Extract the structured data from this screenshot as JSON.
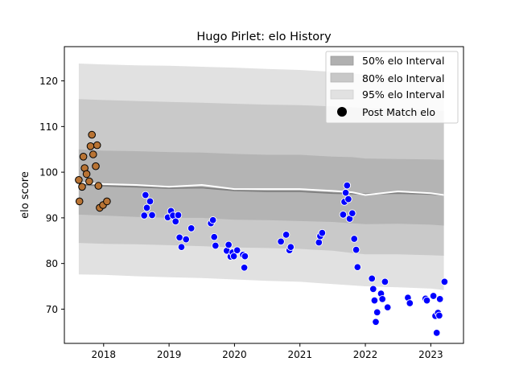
{
  "chart_data": {
    "type": "scatter",
    "title": "Hugo Pirlet: elo History",
    "xlabel": "",
    "ylabel": "elo score",
    "xlim": [
      2017.4,
      2023.5
    ],
    "ylim": [
      62.5,
      127.5
    ],
    "x_ticks": [
      2018,
      2019,
      2020,
      2021,
      2022,
      2023
    ],
    "x_tick_labels": [
      "2018",
      "2019",
      "2020",
      "2021",
      "2022",
      "2023"
    ],
    "y_ticks": [
      70,
      80,
      90,
      100,
      110,
      120
    ],
    "y_tick_labels": [
      "70",
      "80",
      "90",
      "100",
      "110",
      "120"
    ],
    "grid": false,
    "legend_position": "top-right",
    "legend": [
      {
        "label": "50% elo Interval",
        "color": "#b0b0b0",
        "kind": "patch"
      },
      {
        "label": "80% elo Interval",
        "color": "#c8c8c8",
        "kind": "patch"
      },
      {
        "label": "95% elo Interval",
        "color": "#e1e1e1",
        "kind": "patch"
      },
      {
        "label": "Post Match elo",
        "color": "#000000",
        "kind": "marker"
      }
    ],
    "colors": {
      "band95": "#e1e1e1",
      "band80": "#c9c9c9",
      "band50": "#b4b4b4",
      "mean_line": "#808080",
      "median_line": "#ffffff",
      "early_points": "#b87333",
      "late_points": "#0000ff"
    },
    "bands": {
      "x": [
        2017.62,
        2018.0,
        2018.5,
        2019.0,
        2019.5,
        2020.0,
        2020.5,
        2021.0,
        2021.5,
        2021.8,
        2022.0,
        2022.5,
        2023.0,
        2023.2
      ],
      "mean": [
        97.3,
        97.0,
        96.8,
        96.5,
        96.6,
        96.0,
        95.8,
        95.8,
        95.4,
        95.3,
        95.2,
        95.4,
        95.2,
        95.0
      ],
      "median": [
        97.7,
        97.4,
        97.2,
        96.8,
        97.2,
        96.3,
        96.3,
        96.3,
        95.9,
        95.6,
        95.0,
        95.8,
        95.4,
        95.0
      ],
      "p50_low": [
        90.7,
        90.5,
        90.2,
        90.0,
        90.0,
        89.6,
        89.5,
        89.3,
        89.1,
        88.8,
        88.6,
        88.7,
        88.5,
        88.3
      ],
      "p50_high": [
        105.0,
        104.7,
        104.6,
        104.4,
        104.3,
        104.0,
        103.8,
        103.8,
        103.4,
        103.3,
        103.0,
        102.9,
        102.8,
        102.7
      ],
      "p80_low": [
        84.5,
        84.3,
        84.2,
        84.0,
        83.8,
        83.5,
        83.4,
        83.2,
        82.8,
        82.3,
        82.0,
        82.0,
        81.8,
        81.7
      ],
      "p80_high": [
        116.0,
        115.8,
        115.6,
        115.4,
        115.2,
        115.0,
        114.8,
        114.7,
        114.4,
        114.2,
        114.0,
        113.8,
        113.6,
        113.4
      ],
      "p95_low": [
        77.6,
        77.5,
        77.2,
        77.0,
        76.8,
        76.5,
        76.2,
        76.0,
        75.5,
        75.2,
        75.0,
        74.8,
        74.5,
        74.2
      ],
      "p95_high": [
        123.8,
        123.6,
        123.4,
        123.3,
        123.1,
        122.9,
        122.6,
        122.4,
        122.0,
        121.6,
        121.4,
        121.2,
        121.0,
        120.8
      ]
    },
    "series": [
      {
        "points": [
          [
            2017.62,
            98.3
          ],
          [
            2017.63,
            93.6
          ],
          [
            2017.67,
            96.8
          ],
          [
            2017.69,
            103.4
          ],
          [
            2017.71,
            100.9
          ],
          [
            2017.74,
            99.6
          ],
          [
            2017.78,
            98.0
          ],
          [
            2017.8,
            105.7
          ],
          [
            2017.82,
            108.2
          ],
          [
            2017.84,
            103.9
          ],
          [
            2017.88,
            101.3
          ],
          [
            2017.9,
            105.9
          ],
          [
            2017.92,
            97.0
          ],
          [
            2017.94,
            92.2
          ],
          [
            2017.99,
            92.8
          ],
          [
            2018.05,
            93.6
          ]
        ],
        "color": "#b87333"
      },
      {
        "points": [
          [
            2018.62,
            90.5
          ],
          [
            2018.64,
            95.0
          ],
          [
            2018.66,
            92.2
          ],
          [
            2018.71,
            93.6
          ],
          [
            2018.74,
            90.6
          ],
          [
            2018.98,
            90.1
          ],
          [
            2019.03,
            91.5
          ],
          [
            2019.06,
            90.5
          ],
          [
            2019.1,
            89.2
          ],
          [
            2019.14,
            90.6
          ],
          [
            2019.16,
            85.7
          ],
          [
            2019.19,
            83.6
          ],
          [
            2019.26,
            85.3
          ],
          [
            2019.34,
            87.7
          ],
          [
            2019.64,
            88.8
          ],
          [
            2019.67,
            89.5
          ],
          [
            2019.69,
            85.8
          ],
          [
            2019.71,
            83.9
          ],
          [
            2019.88,
            82.8
          ],
          [
            2019.91,
            84.1
          ],
          [
            2019.94,
            81.5
          ],
          [
            2019.97,
            82.4
          ],
          [
            2019.99,
            81.6
          ],
          [
            2020.04,
            82.9
          ],
          [
            2020.13,
            81.9
          ],
          [
            2020.16,
            81.6
          ],
          [
            2020.15,
            79.1
          ],
          [
            2020.71,
            84.8
          ],
          [
            2020.79,
            86.3
          ],
          [
            2020.84,
            82.9
          ],
          [
            2020.86,
            83.6
          ],
          [
            2021.29,
            84.6
          ],
          [
            2021.31,
            86.0
          ],
          [
            2021.34,
            86.7
          ],
          [
            2021.66,
            90.7
          ],
          [
            2021.68,
            93.5
          ],
          [
            2021.7,
            95.5
          ],
          [
            2021.72,
            97.1
          ],
          [
            2021.74,
            94.1
          ],
          [
            2021.76,
            89.8
          ],
          [
            2021.8,
            91.0
          ],
          [
            2021.83,
            85.4
          ],
          [
            2021.86,
            83.0
          ],
          [
            2021.88,
            79.2
          ],
          [
            2022.1,
            76.7
          ],
          [
            2022.12,
            74.4
          ],
          [
            2022.14,
            71.9
          ],
          [
            2022.16,
            67.2
          ],
          [
            2022.18,
            69.3
          ],
          [
            2022.24,
            73.4
          ],
          [
            2022.26,
            72.2
          ],
          [
            2022.3,
            76.0
          ],
          [
            2022.34,
            70.4
          ],
          [
            2022.65,
            72.5
          ],
          [
            2022.68,
            71.3
          ],
          [
            2022.92,
            72.3
          ],
          [
            2022.94,
            71.9
          ],
          [
            2023.04,
            72.9
          ],
          [
            2023.07,
            68.5
          ],
          [
            2023.09,
            64.8
          ],
          [
            2023.11,
            69.2
          ],
          [
            2023.13,
            68.6
          ],
          [
            2023.14,
            72.2
          ],
          [
            2023.21,
            76.0
          ]
        ],
        "color": "#0000ff"
      }
    ]
  }
}
